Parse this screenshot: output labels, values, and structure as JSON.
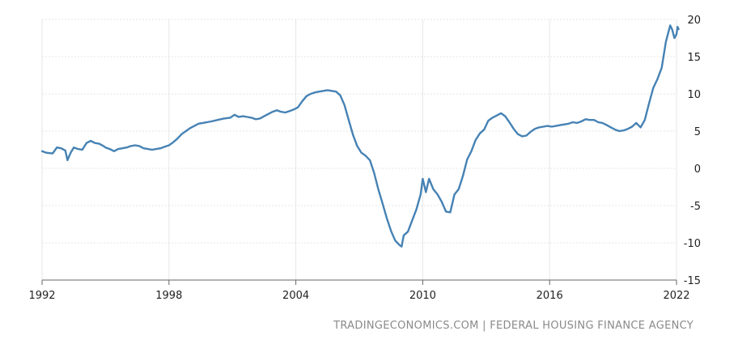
{
  "chart_data": {
    "type": "line",
    "title": "",
    "xlabel": "",
    "ylabel": "",
    "xlim": [
      1992,
      2022.1
    ],
    "ylim": [
      -15,
      20
    ],
    "x_ticks": [
      "1992",
      "1998",
      "2004",
      "2010",
      "2016",
      "2022"
    ],
    "y_ticks": [
      "20",
      "15",
      "10",
      "5",
      "0",
      "-5",
      "-10",
      "-15"
    ],
    "grid": true,
    "legend": "none",
    "color": "#4682b4",
    "series": [
      {
        "name": "",
        "points": [
          [
            1992.0,
            2.3
          ],
          [
            1992.2,
            2.1
          ],
          [
            1992.5,
            2.0
          ],
          [
            1992.7,
            2.8
          ],
          [
            1992.9,
            2.7
          ],
          [
            1993.1,
            2.4
          ],
          [
            1993.2,
            1.1
          ],
          [
            1993.35,
            2.1
          ],
          [
            1993.5,
            2.8
          ],
          [
            1993.7,
            2.6
          ],
          [
            1993.9,
            2.5
          ],
          [
            1994.1,
            3.4
          ],
          [
            1994.3,
            3.7
          ],
          [
            1994.5,
            3.4
          ],
          [
            1994.7,
            3.3
          ],
          [
            1994.9,
            3.0
          ],
          [
            1995.0,
            2.8
          ],
          [
            1995.2,
            2.6
          ],
          [
            1995.4,
            2.3
          ],
          [
            1995.6,
            2.6
          ],
          [
            1995.8,
            2.7
          ],
          [
            1996.0,
            2.8
          ],
          [
            1996.2,
            3.0
          ],
          [
            1996.4,
            3.1
          ],
          [
            1996.6,
            3.0
          ],
          [
            1996.8,
            2.7
          ],
          [
            1997.0,
            2.6
          ],
          [
            1997.2,
            2.5
          ],
          [
            1997.4,
            2.6
          ],
          [
            1997.6,
            2.7
          ],
          [
            1997.8,
            2.9
          ],
          [
            1998.0,
            3.1
          ],
          [
            1998.2,
            3.5
          ],
          [
            1998.4,
            4.0
          ],
          [
            1998.6,
            4.6
          ],
          [
            1998.8,
            5.0
          ],
          [
            1999.0,
            5.4
          ],
          [
            1999.2,
            5.7
          ],
          [
            1999.4,
            6.0
          ],
          [
            1999.6,
            6.1
          ],
          [
            1999.8,
            6.2
          ],
          [
            2000.0,
            6.3
          ],
          [
            2000.3,
            6.5
          ],
          [
            2000.6,
            6.7
          ],
          [
            2000.9,
            6.8
          ],
          [
            2001.1,
            7.2
          ],
          [
            2001.3,
            6.9
          ],
          [
            2001.5,
            7.0
          ],
          [
            2001.7,
            6.9
          ],
          [
            2001.9,
            6.8
          ],
          [
            2002.1,
            6.6
          ],
          [
            2002.3,
            6.7
          ],
          [
            2002.5,
            7.0
          ],
          [
            2002.7,
            7.3
          ],
          [
            2002.9,
            7.6
          ],
          [
            2003.1,
            7.8
          ],
          [
            2003.3,
            7.6
          ],
          [
            2003.5,
            7.5
          ],
          [
            2003.7,
            7.7
          ],
          [
            2003.9,
            7.9
          ],
          [
            2004.1,
            8.2
          ],
          [
            2004.3,
            9.0
          ],
          [
            2004.5,
            9.7
          ],
          [
            2004.7,
            10.0
          ],
          [
            2004.9,
            10.2
          ],
          [
            2005.1,
            10.3
          ],
          [
            2005.3,
            10.4
          ],
          [
            2005.5,
            10.5
          ],
          [
            2005.7,
            10.4
          ],
          [
            2005.9,
            10.3
          ],
          [
            2006.1,
            9.8
          ],
          [
            2006.3,
            8.5
          ],
          [
            2006.5,
            6.5
          ],
          [
            2006.7,
            4.5
          ],
          [
            2006.9,
            3.0
          ],
          [
            2007.1,
            2.1
          ],
          [
            2007.3,
            1.7
          ],
          [
            2007.5,
            1.1
          ],
          [
            2007.7,
            -0.6
          ],
          [
            2007.9,
            -2.8
          ],
          [
            2008.1,
            -4.7
          ],
          [
            2008.3,
            -6.7
          ],
          [
            2008.5,
            -8.4
          ],
          [
            2008.7,
            -9.7
          ],
          [
            2008.9,
            -10.3
          ],
          [
            2009.0,
            -10.5
          ],
          [
            2009.1,
            -9.0
          ],
          [
            2009.3,
            -8.5
          ],
          [
            2009.5,
            -7.0
          ],
          [
            2009.7,
            -5.5
          ],
          [
            2009.9,
            -3.5
          ],
          [
            2010.0,
            -1.4
          ],
          [
            2010.15,
            -3.2
          ],
          [
            2010.3,
            -1.4
          ],
          [
            2010.5,
            -2.8
          ],
          [
            2010.7,
            -3.5
          ],
          [
            2010.9,
            -4.5
          ],
          [
            2011.1,
            -5.8
          ],
          [
            2011.3,
            -5.9
          ],
          [
            2011.5,
            -3.5
          ],
          [
            2011.7,
            -2.8
          ],
          [
            2011.9,
            -1.0
          ],
          [
            2012.1,
            1.2
          ],
          [
            2012.3,
            2.3
          ],
          [
            2012.5,
            3.8
          ],
          [
            2012.7,
            4.7
          ],
          [
            2012.9,
            5.2
          ],
          [
            2013.1,
            6.4
          ],
          [
            2013.3,
            6.8
          ],
          [
            2013.5,
            7.1
          ],
          [
            2013.7,
            7.4
          ],
          [
            2013.9,
            7.0
          ],
          [
            2014.1,
            6.2
          ],
          [
            2014.3,
            5.3
          ],
          [
            2014.5,
            4.6
          ],
          [
            2014.7,
            4.3
          ],
          [
            2014.9,
            4.4
          ],
          [
            2015.1,
            4.9
          ],
          [
            2015.3,
            5.3
          ],
          [
            2015.5,
            5.5
          ],
          [
            2015.7,
            5.6
          ],
          [
            2015.9,
            5.7
          ],
          [
            2016.1,
            5.6
          ],
          [
            2016.3,
            5.7
          ],
          [
            2016.5,
            5.8
          ],
          [
            2016.7,
            5.9
          ],
          [
            2016.9,
            6.0
          ],
          [
            2017.1,
            6.2
          ],
          [
            2017.3,
            6.1
          ],
          [
            2017.5,
            6.3
          ],
          [
            2017.7,
            6.6
          ],
          [
            2017.9,
            6.5
          ],
          [
            2018.1,
            6.5
          ],
          [
            2018.3,
            6.2
          ],
          [
            2018.5,
            6.1
          ],
          [
            2018.7,
            5.8
          ],
          [
            2018.9,
            5.5
          ],
          [
            2019.1,
            5.2
          ],
          [
            2019.3,
            5.0
          ],
          [
            2019.5,
            5.1
          ],
          [
            2019.7,
            5.3
          ],
          [
            2019.9,
            5.6
          ],
          [
            2020.1,
            6.1
          ],
          [
            2020.3,
            5.5
          ],
          [
            2020.5,
            6.5
          ],
          [
            2020.7,
            8.7
          ],
          [
            2020.9,
            10.8
          ],
          [
            2021.1,
            12.0
          ],
          [
            2021.3,
            13.5
          ],
          [
            2021.5,
            17.0
          ],
          [
            2021.7,
            19.2
          ],
          [
            2021.8,
            18.6
          ],
          [
            2021.9,
            17.5
          ],
          [
            2022.0,
            18.0
          ],
          [
            2022.05,
            19.0
          ],
          [
            2022.1,
            18.7
          ]
        ]
      }
    ]
  },
  "source": {
    "site": "TRADINGECONOMICS.COM",
    "separator": "|",
    "agency": "FEDERAL HOUSING FINANCE AGENCY"
  }
}
